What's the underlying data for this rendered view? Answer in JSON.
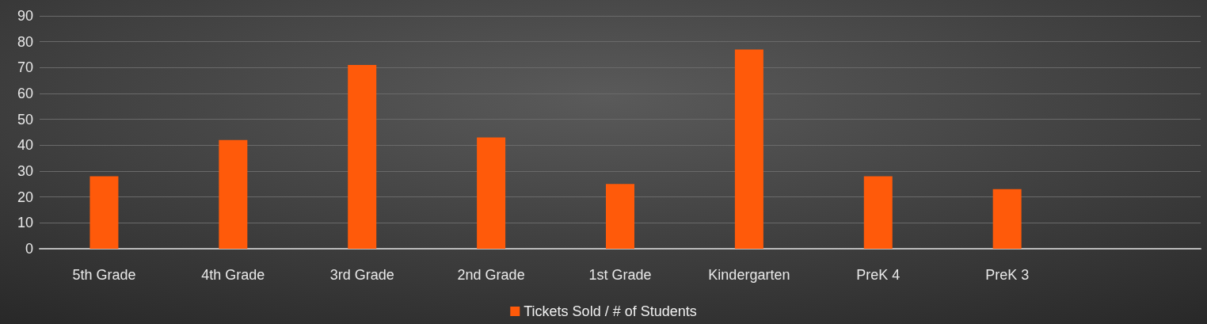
{
  "chart_data": {
    "type": "bar",
    "categories": [
      "5th Grade",
      "4th Grade",
      "3rd Grade",
      "2nd Grade",
      "1st Grade",
      "Kindergarten",
      "PreK 4",
      "PreK 3",
      null
    ],
    "series": [
      {
        "name": "Tickets Sold / # of Students",
        "color": "#ff5a0a",
        "values": [
          28,
          42,
          71,
          43,
          25,
          77,
          28,
          23,
          null
        ]
      }
    ],
    "ylim": [
      0,
      90
    ],
    "yticks": [
      0,
      10,
      20,
      30,
      40,
      50,
      60,
      70,
      80,
      90
    ],
    "grid": "y",
    "legend": "bottom"
  }
}
